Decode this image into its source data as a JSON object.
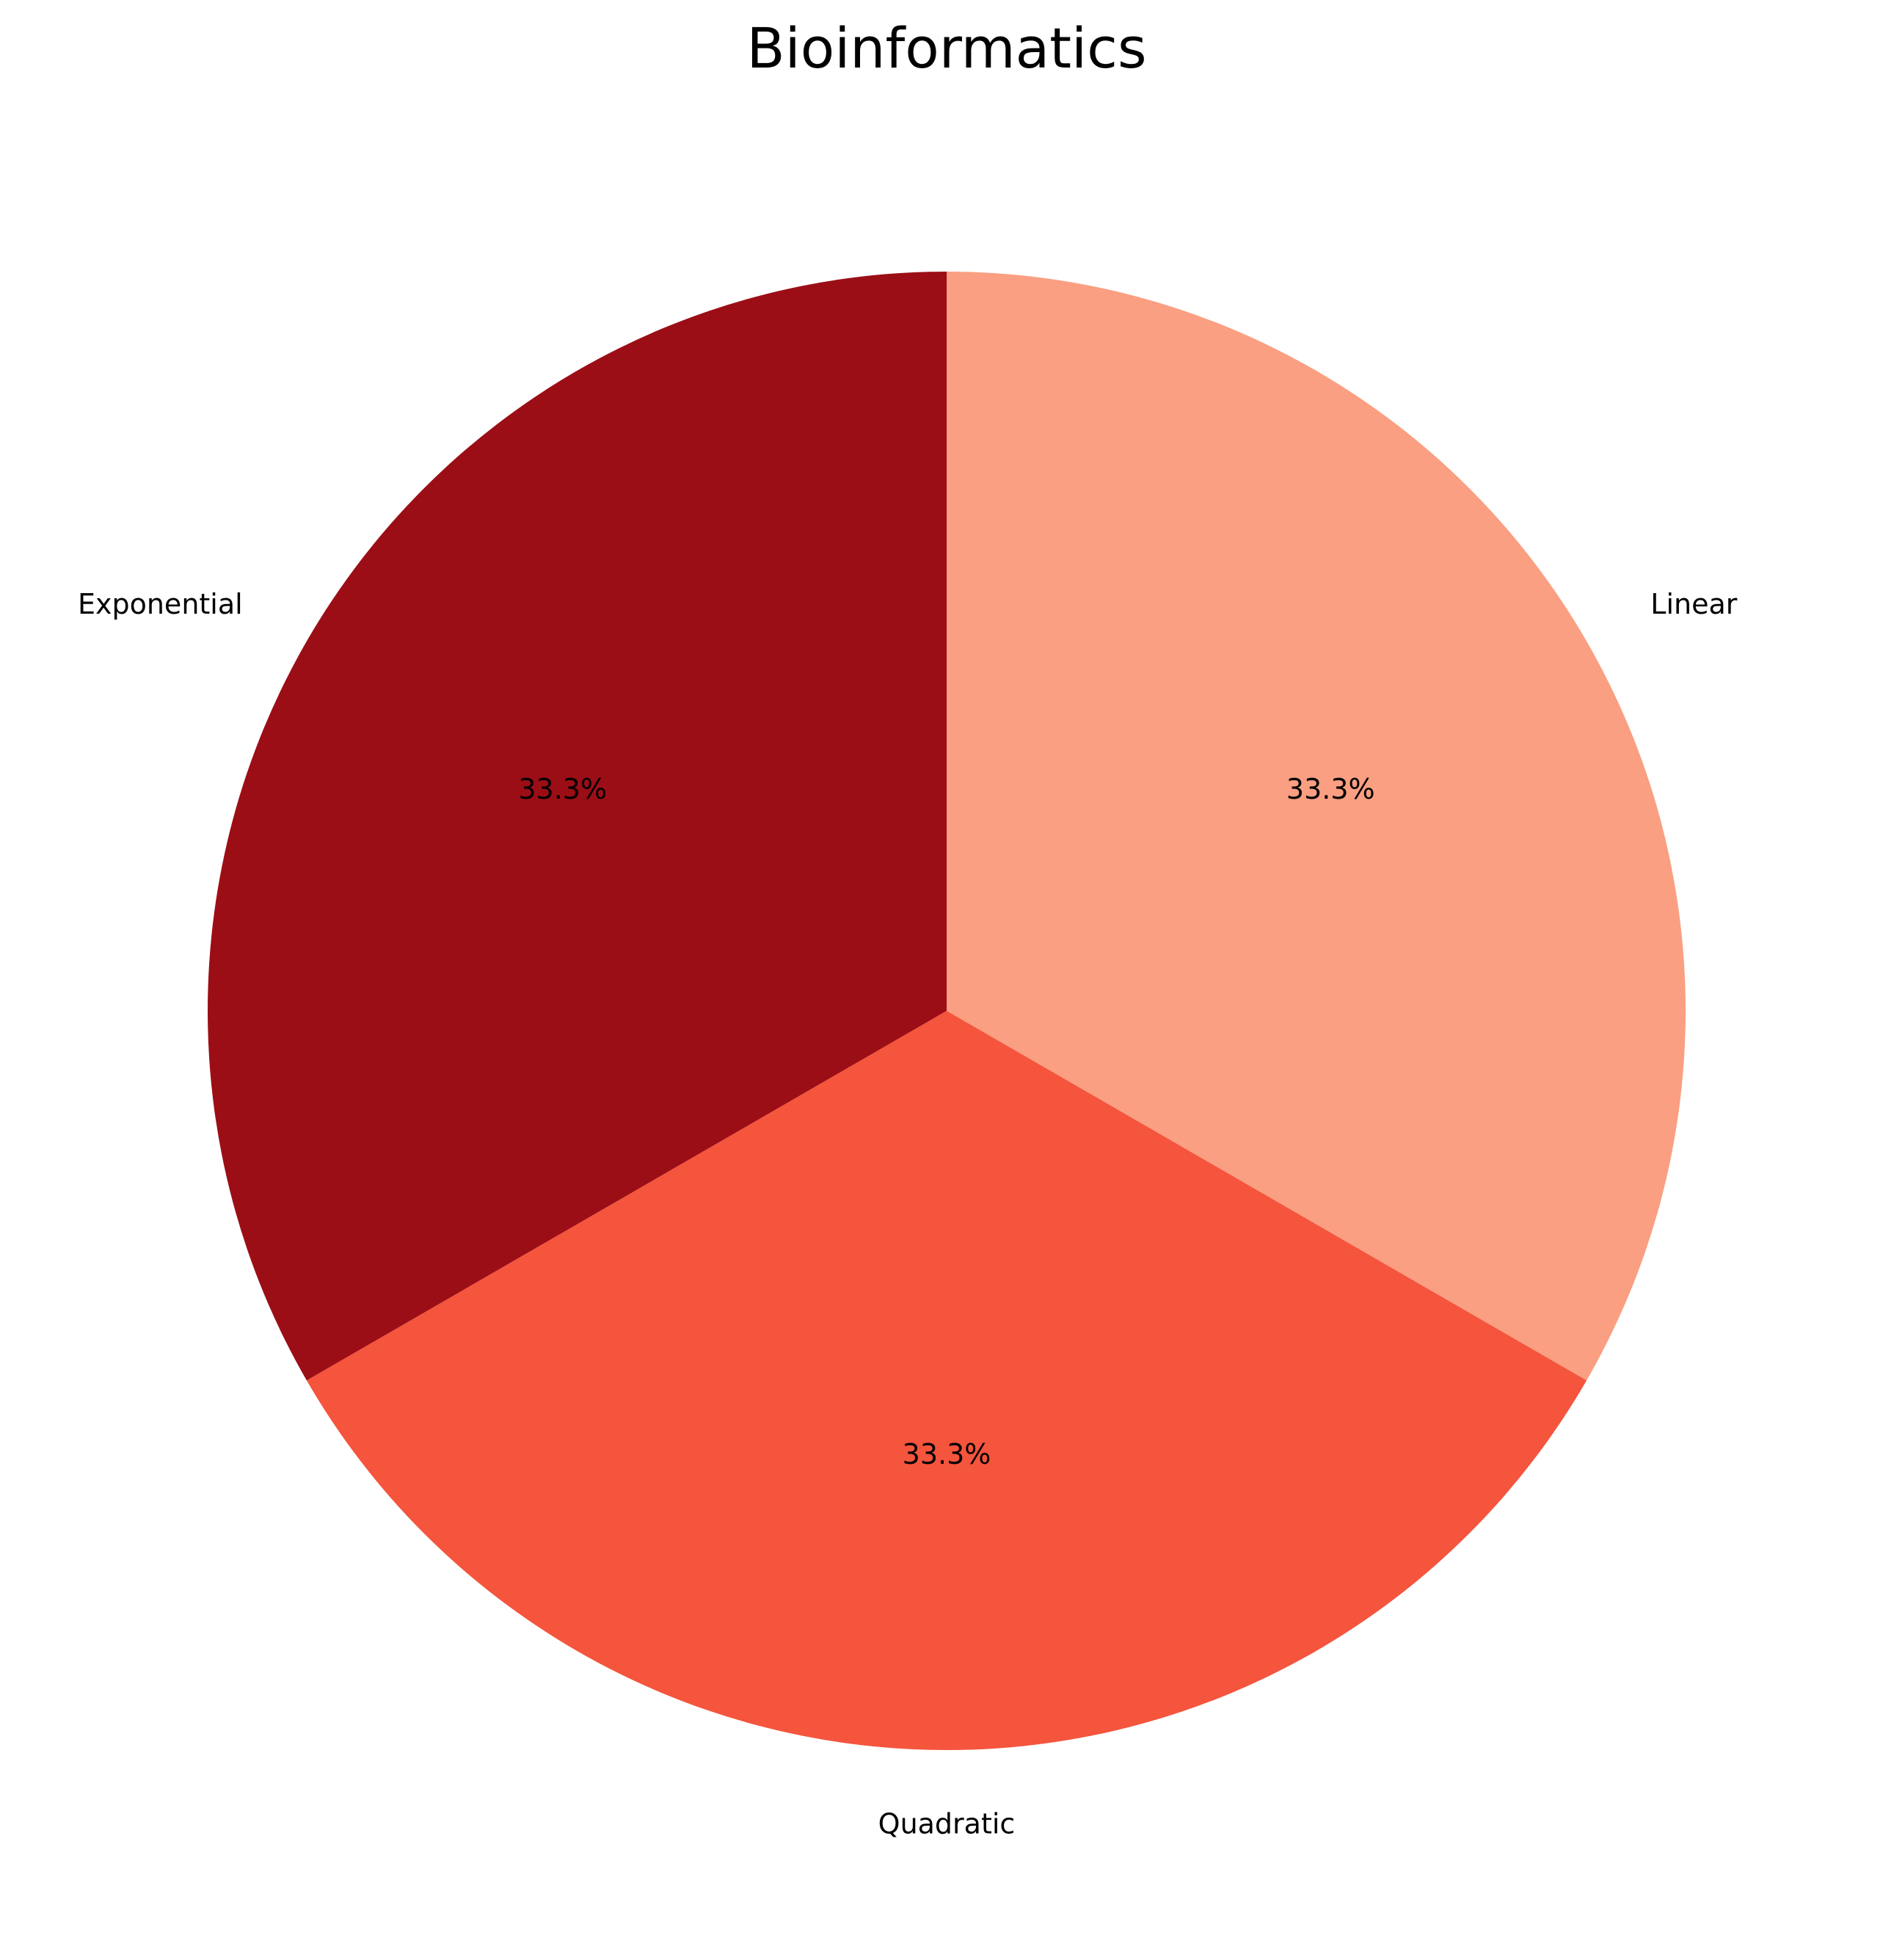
{
  "chart_data": {
    "type": "pie",
    "title": "Bioinformatics",
    "slices": [
      {
        "label": "Linear",
        "value": 1,
        "percent_label": "33.3%",
        "color": "#fa9f81"
      },
      {
        "label": "Quadratic",
        "value": 1,
        "percent_label": "33.3%",
        "color": "#f5543d"
      },
      {
        "label": "Exponential",
        "value": 1,
        "percent_label": "33.3%",
        "color": "#9b0e16"
      }
    ],
    "start_angle_deg": 90,
    "direction": "clockwise",
    "legend": "none"
  }
}
